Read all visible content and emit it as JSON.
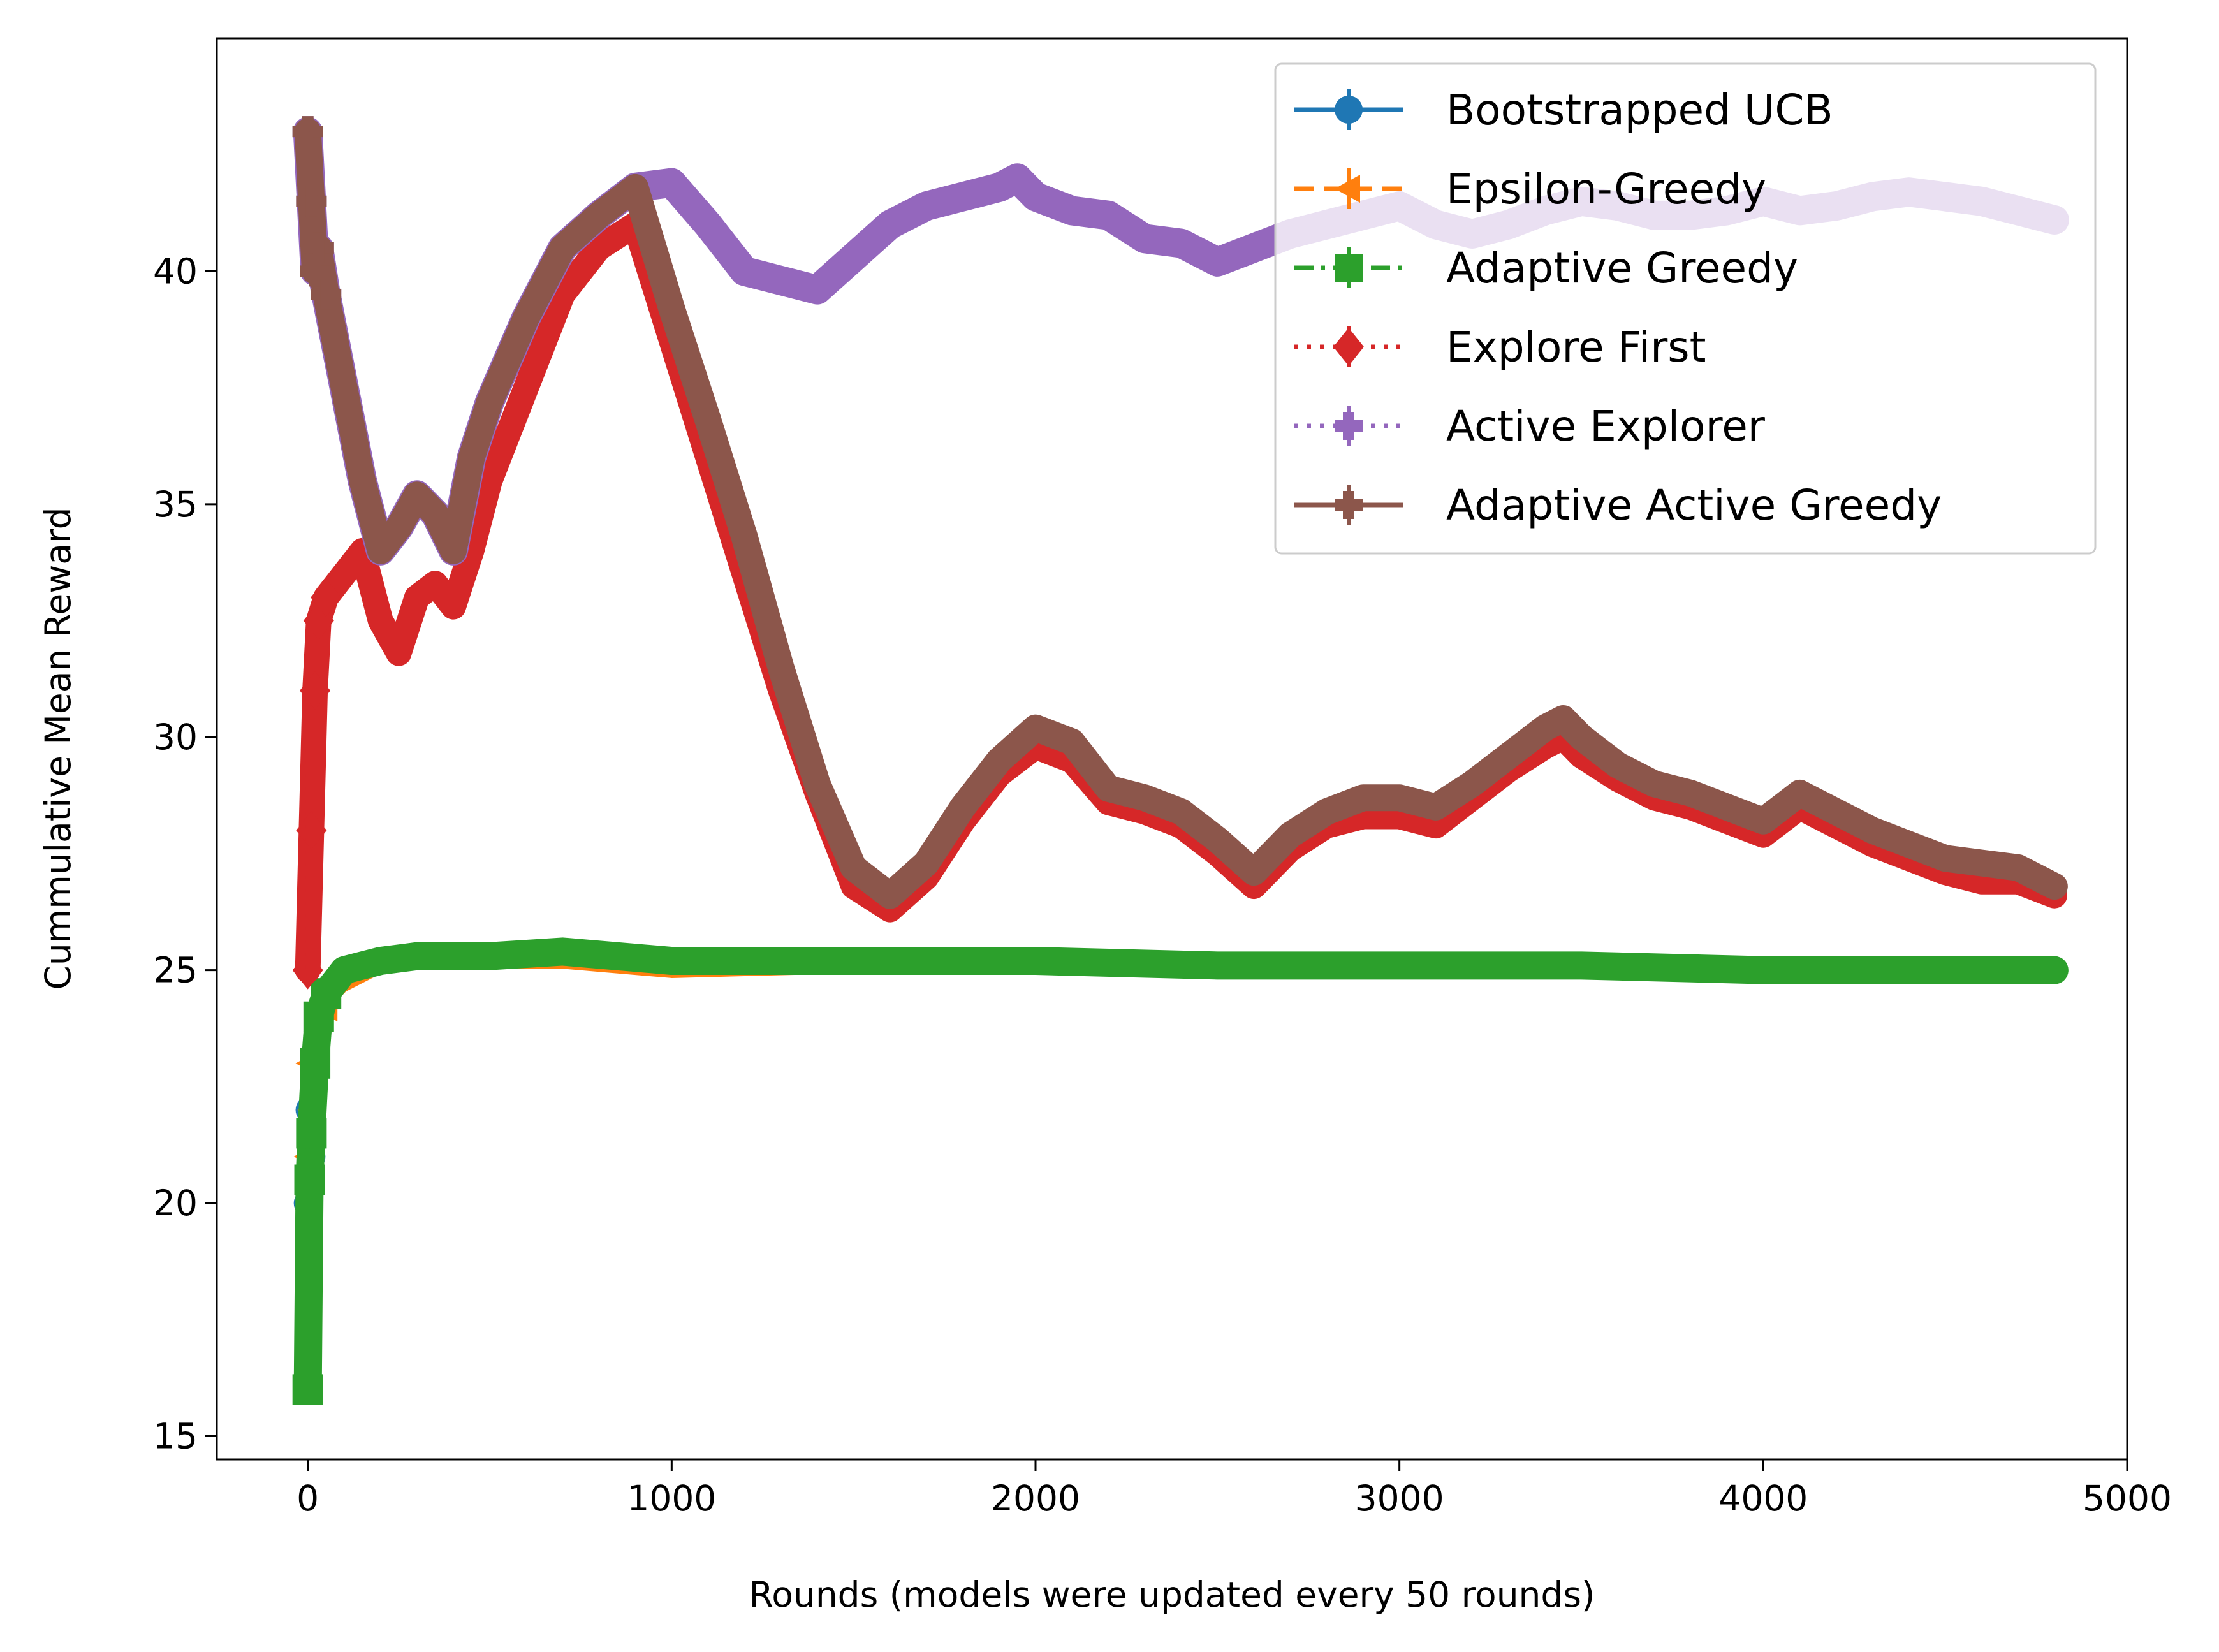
{
  "chart_data": {
    "type": "line",
    "title": "",
    "xlabel": "Rounds (models were updated every 50 rounds)",
    "ylabel": "Cummulative Mean Reward",
    "xlim": [
      -250,
      5000
    ],
    "ylim": [
      14.5,
      45
    ],
    "xticks": [
      0,
      1000,
      2000,
      3000,
      4000,
      5000
    ],
    "yticks": [
      15,
      20,
      25,
      30,
      35,
      40
    ],
    "grid": false,
    "legend_position": "top-right",
    "series": [
      {
        "name": "Bootstrapped UCB",
        "color": "#1f77b4",
        "style": "solid",
        "marker": "circle",
        "x": [
          0,
          5,
          10,
          20,
          30,
          50,
          100,
          150,
          200,
          300,
          500,
          700,
          1000,
          1500,
          2000,
          2500,
          3000,
          3500,
          4000,
          4500,
          4800
        ],
        "y": [
          20,
          22,
          21,
          23,
          24,
          24.5,
          24.8,
          25.0,
          25.1,
          25.2,
          25.2,
          25.2,
          25.1,
          25.1,
          25.1,
          25.1,
          25.0,
          25.0,
          25.0,
          25.0,
          25.0
        ]
      },
      {
        "name": "Epsilon-Greedy",
        "color": "#ff7f0e",
        "style": "dashed",
        "marker": "triangle-left",
        "x": [
          0,
          5,
          10,
          20,
          30,
          50,
          100,
          150,
          200,
          300,
          500,
          700,
          1000,
          1500,
          2000,
          2500,
          3000,
          3500,
          4000,
          4500,
          4800
        ],
        "y": [
          21,
          23,
          22,
          22.5,
          23.5,
          24.2,
          24.6,
          24.8,
          25.0,
          25.1,
          25.1,
          25.1,
          24.9,
          25.0,
          25.0,
          25.0,
          24.9,
          24.9,
          24.9,
          24.9,
          24.9
        ]
      },
      {
        "name": "Adaptive Greedy",
        "color": "#2ca02c",
        "style": "dashdot",
        "marker": "square",
        "x": [
          0,
          5,
          10,
          20,
          30,
          50,
          100,
          150,
          200,
          300,
          500,
          700,
          1000,
          1500,
          2000,
          2500,
          3000,
          3500,
          4000,
          4500,
          4800
        ],
        "y": [
          16,
          20.5,
          21.5,
          23,
          24,
          24.5,
          25.0,
          25.1,
          25.2,
          25.3,
          25.3,
          25.4,
          25.2,
          25.2,
          25.2,
          25.1,
          25.1,
          25.1,
          25.0,
          25.0,
          25.0
        ]
      },
      {
        "name": "Explore First",
        "color": "#d62728",
        "style": "dotted",
        "marker": "diamond",
        "x": [
          0,
          10,
          20,
          30,
          50,
          100,
          150,
          200,
          250,
          300,
          350,
          400,
          450,
          500,
          600,
          700,
          800,
          900,
          1000,
          1100,
          1200,
          1300,
          1400,
          1500,
          1600,
          1700,
          1800,
          1900,
          2000,
          2100,
          2200,
          2300,
          2400,
          2500,
          2600,
          2700,
          2800,
          2900,
          3000,
          3100,
          3200,
          3300,
          3400,
          3450,
          3500,
          3600,
          3700,
          3800,
          3900,
          4000,
          4100,
          4200,
          4300,
          4400,
          4500,
          4600,
          4700,
          4800
        ],
        "y": [
          25,
          28,
          31,
          32.5,
          33,
          33.5,
          34,
          32.5,
          31.8,
          33.0,
          33.3,
          32.8,
          34.0,
          35.5,
          37.5,
          39.5,
          40.5,
          41.0,
          38.5,
          36.0,
          33.5,
          31.0,
          28.8,
          26.8,
          26.3,
          27.0,
          28.2,
          29.2,
          29.8,
          29.5,
          28.6,
          28.4,
          28.1,
          27.5,
          26.8,
          27.6,
          28.1,
          28.3,
          28.3,
          28.1,
          28.7,
          29.3,
          29.8,
          30.0,
          29.6,
          29.1,
          28.7,
          28.5,
          28.2,
          27.9,
          28.5,
          28.1,
          27.7,
          27.4,
          27.1,
          26.9,
          26.9,
          26.6
        ]
      },
      {
        "name": "Active Explorer",
        "color": "#9467bd",
        "style": "dotted",
        "marker": "plus-filled",
        "x": [
          0,
          10,
          20,
          30,
          50,
          100,
          150,
          200,
          250,
          300,
          350,
          400,
          450,
          500,
          600,
          700,
          800,
          900,
          1000,
          1100,
          1200,
          1300,
          1400,
          1500,
          1600,
          1700,
          1800,
          1900,
          1950,
          2000,
          2100,
          2200,
          2300,
          2400,
          2500,
          2600,
          2700,
          2800,
          2900,
          3000,
          3100,
          3200,
          3300,
          3400,
          3500,
          3600,
          3700,
          3800,
          3900,
          4000,
          4100,
          4200,
          4300,
          4400,
          4500,
          4600,
          4700,
          4800
        ],
        "y": [
          43,
          41.5,
          40,
          40.5,
          39.5,
          37.5,
          35.5,
          34.0,
          34.5,
          35.2,
          34.8,
          34.0,
          36.0,
          37.2,
          39.0,
          40.5,
          41.2,
          41.8,
          41.9,
          41.0,
          40.0,
          39.8,
          39.6,
          40.3,
          41.0,
          41.4,
          41.6,
          41.8,
          42.0,
          41.6,
          41.3,
          41.2,
          40.7,
          40.6,
          40.2,
          40.5,
          40.8,
          41.0,
          41.2,
          41.4,
          41.0,
          40.8,
          41.0,
          41.3,
          41.5,
          41.4,
          41.2,
          41.2,
          41.3,
          41.5,
          41.3,
          41.4,
          41.6,
          41.7,
          41.6,
          41.5,
          41.3,
          41.1
        ]
      },
      {
        "name": "Adaptive Active Greedy",
        "color": "#8c564b",
        "style": "solid",
        "marker": "plus",
        "x": [
          0,
          10,
          20,
          30,
          50,
          100,
          150,
          200,
          250,
          300,
          350,
          400,
          450,
          500,
          600,
          700,
          800,
          900,
          1000,
          1100,
          1200,
          1300,
          1400,
          1500,
          1600,
          1700,
          1800,
          1900,
          2000,
          2100,
          2200,
          2300,
          2400,
          2500,
          2600,
          2700,
          2800,
          2900,
          3000,
          3100,
          3200,
          3300,
          3400,
          3450,
          3500,
          3600,
          3700,
          3800,
          3900,
          4000,
          4100,
          4200,
          4300,
          4400,
          4500,
          4600,
          4700,
          4800
        ],
        "y": [
          43,
          41.5,
          40,
          40.5,
          39.5,
          37.5,
          35.5,
          34.0,
          34.5,
          35.2,
          34.8,
          34.0,
          36.0,
          37.2,
          39.0,
          40.5,
          41.2,
          41.8,
          39.2,
          36.8,
          34.3,
          31.5,
          29.0,
          27.2,
          26.6,
          27.3,
          28.5,
          29.5,
          30.2,
          29.9,
          28.9,
          28.7,
          28.4,
          27.8,
          27.1,
          27.9,
          28.4,
          28.7,
          28.7,
          28.5,
          29.0,
          29.6,
          30.2,
          30.4,
          30.0,
          29.4,
          29.0,
          28.8,
          28.5,
          28.2,
          28.8,
          28.4,
          28.0,
          27.7,
          27.4,
          27.3,
          27.2,
          26.8
        ]
      }
    ]
  }
}
